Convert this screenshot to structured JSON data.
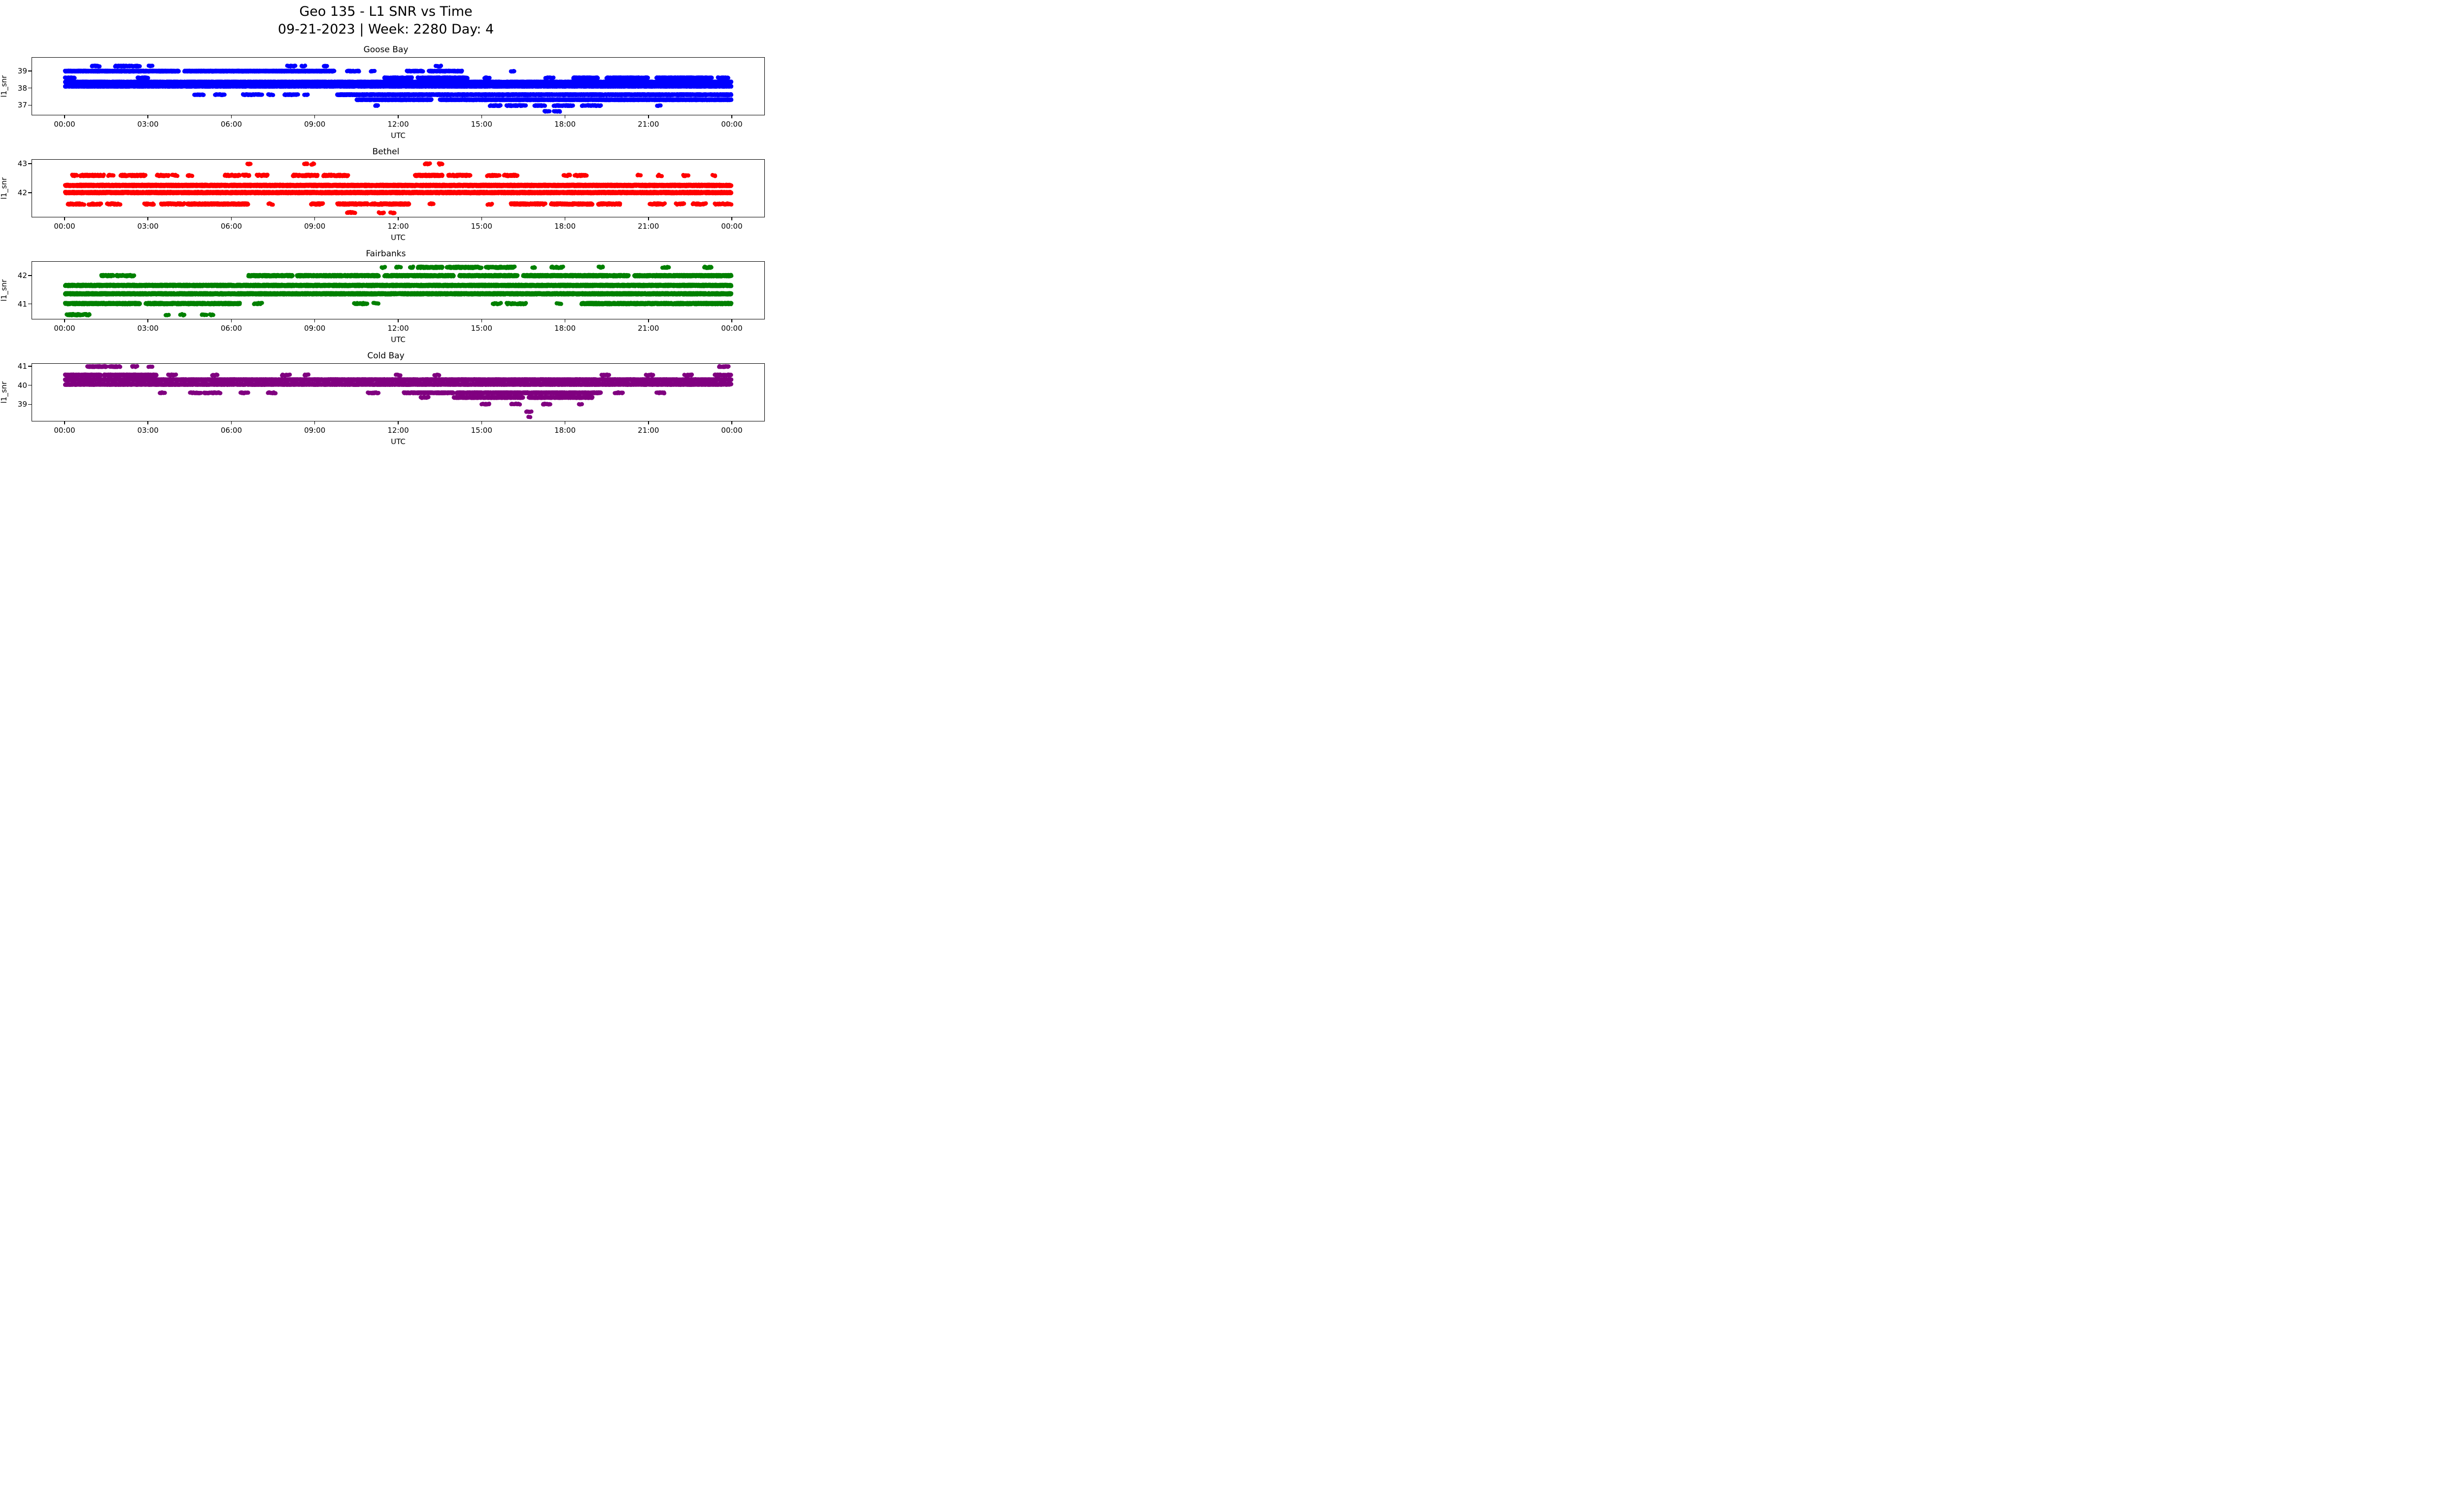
{
  "figure": {
    "title_line1": "Geo 135 - L1 SNR vs Time",
    "title_line2": "09-21-2023 | Week: 2280 Day: 4"
  },
  "chart_data": [
    {
      "type": "scatter",
      "title": "Goose Bay",
      "color": "#0000ff",
      "xlabel": "UTC",
      "ylabel": "l1_snr",
      "xlim": [
        0,
        24
      ],
      "ylim": [
        36.4,
        39.8
      ],
      "x_ticks": [
        0,
        3,
        6,
        9,
        12,
        15,
        18,
        21,
        24
      ],
      "x_ticklabels": [
        "00:00",
        "03:00",
        "06:00",
        "09:00",
        "12:00",
        "15:00",
        "18:00",
        "21:00",
        "00:00"
      ],
      "y_ticks": [
        37,
        38,
        39
      ],
      "marker_px": 8.4,
      "bands": [
        {
          "y": 39.3,
          "segments": [
            [
              0.95,
              1.25,
              50
            ],
            [
              1.8,
              2.25,
              60
            ],
            [
              2.3,
              2.7,
              60
            ],
            [
              3.0,
              3.15,
              40
            ],
            [
              8.0,
              8.3,
              50
            ],
            [
              8.5,
              8.65,
              40
            ],
            [
              9.3,
              9.45,
              40
            ],
            [
              13.35,
              13.55,
              40
            ]
          ]
        },
        {
          "y": 39.0,
          "segments": [
            [
              0.0,
              4.1,
              200
            ],
            [
              4.3,
              9.7,
              200
            ],
            [
              10.15,
              10.6,
              60
            ],
            [
              11.0,
              11.15,
              40
            ],
            [
              12.3,
              12.9,
              80
            ],
            [
              13.1,
              14.3,
              90
            ],
            [
              16.05,
              16.2,
              40
            ]
          ]
        },
        {
          "y": 38.6,
          "segments": [
            [
              0.0,
              0.35,
              80
            ],
            [
              2.6,
              3.0,
              60
            ],
            [
              11.5,
              12.5,
              100
            ],
            [
              12.7,
              14.5,
              110
            ],
            [
              15.1,
              15.3,
              40
            ],
            [
              17.3,
              17.6,
              40
            ],
            [
              18.3,
              19.2,
              90
            ],
            [
              19.5,
              21.0,
              100
            ],
            [
              21.3,
              23.3,
              110
            ],
            [
              23.5,
              23.9,
              60
            ]
          ]
        },
        {
          "y": 38.35,
          "segments": [
            [
              0.0,
              24.0,
              200
            ]
          ]
        },
        {
          "y": 38.1,
          "segments": [
            [
              0.0,
              24.0,
              200
            ]
          ]
        },
        {
          "y": 37.6,
          "segments": [
            [
              4.65,
              5.0,
              60
            ],
            [
              5.4,
              5.75,
              60
            ],
            [
              6.4,
              7.1,
              70
            ],
            [
              7.3,
              7.5,
              40
            ],
            [
              7.9,
              8.4,
              60
            ],
            [
              8.6,
              8.75,
              40
            ],
            [
              9.8,
              24.0,
              190
            ]
          ]
        },
        {
          "y": 37.3,
          "segments": [
            [
              10.5,
              13.2,
              170
            ],
            [
              13.5,
              24.0,
              190
            ]
          ]
        },
        {
          "y": 36.95,
          "segments": [
            [
              11.15,
              11.3,
              30
            ],
            [
              15.3,
              15.7,
              50
            ],
            [
              15.9,
              16.6,
              60
            ],
            [
              16.9,
              17.3,
              50
            ],
            [
              17.6,
              18.3,
              60
            ],
            [
              18.6,
              19.3,
              50
            ],
            [
              21.3,
              21.45,
              30
            ]
          ]
        },
        {
          "y": 36.6,
          "segments": [
            [
              17.25,
              17.45,
              40
            ],
            [
              17.6,
              17.85,
              40
            ]
          ]
        }
      ]
    },
    {
      "type": "scatter",
      "title": "Bethel",
      "color": "#ff0000",
      "xlabel": "UTC",
      "ylabel": "l1_snr",
      "xlim": [
        0,
        24
      ],
      "ylim": [
        41.15,
        43.15
      ],
      "x_ticks": [
        0,
        3,
        6,
        9,
        12,
        15,
        18,
        21,
        24
      ],
      "x_ticklabels": [
        "00:00",
        "03:00",
        "06:00",
        "09:00",
        "12:00",
        "15:00",
        "18:00",
        "21:00",
        "00:00"
      ],
      "y_ticks": [
        42,
        43
      ],
      "marker_px": 8.4,
      "bands": [
        {
          "y": 43.0,
          "segments": [
            [
              6.55,
              6.7,
              40
            ],
            [
              8.6,
              8.75,
              40
            ],
            [
              8.85,
              9.0,
              30
            ],
            [
              12.95,
              13.15,
              40
            ],
            [
              13.45,
              13.6,
              40
            ]
          ]
        },
        {
          "y": 42.6,
          "segments": [
            [
              0.25,
              0.45,
              50
            ],
            [
              0.55,
              1.4,
              80
            ],
            [
              1.55,
              1.75,
              40
            ],
            [
              2.0,
              2.9,
              80
            ],
            [
              3.3,
              3.75,
              60
            ],
            [
              3.85,
              4.05,
              40
            ],
            [
              4.4,
              4.6,
              40
            ],
            [
              5.75,
              6.3,
              70
            ],
            [
              6.4,
              6.65,
              50
            ],
            [
              6.9,
              7.3,
              60
            ],
            [
              8.2,
              9.1,
              90
            ],
            [
              9.3,
              10.2,
              90
            ],
            [
              12.6,
              13.6,
              110
            ],
            [
              13.8,
              14.6,
              90
            ],
            [
              15.2,
              15.65,
              60
            ],
            [
              15.8,
              16.3,
              60
            ],
            [
              17.95,
              18.2,
              40
            ],
            [
              18.35,
              18.8,
              50
            ],
            [
              20.6,
              20.75,
              30
            ],
            [
              21.35,
              21.5,
              30
            ],
            [
              22.25,
              22.45,
              40
            ],
            [
              23.3,
              23.45,
              30
            ]
          ]
        },
        {
          "y": 42.25,
          "segments": [
            [
              0.0,
              24.0,
              210
            ]
          ]
        },
        {
          "y": 42.0,
          "segments": [
            [
              0.0,
              24.0,
              210
            ]
          ]
        },
        {
          "y": 41.6,
          "segments": [
            [
              0.1,
              0.7,
              70
            ],
            [
              0.85,
              1.3,
              60
            ],
            [
              1.5,
              2.0,
              60
            ],
            [
              2.85,
              3.2,
              50
            ],
            [
              3.45,
              4.3,
              80
            ],
            [
              4.4,
              6.6,
              140
            ],
            [
              7.3,
              7.5,
              30
            ],
            [
              8.85,
              9.3,
              50
            ],
            [
              9.8,
              10.9,
              90
            ],
            [
              11.0,
              12.4,
              110
            ],
            [
              13.1,
              13.3,
              30
            ],
            [
              15.2,
              15.4,
              30
            ],
            [
              16.05,
              17.3,
              100
            ],
            [
              17.5,
              19.0,
              110
            ],
            [
              19.2,
              20.0,
              80
            ],
            [
              21.05,
              21.6,
              50
            ],
            [
              22.0,
              22.3,
              40
            ],
            [
              22.6,
              23.1,
              50
            ],
            [
              23.4,
              24.0,
              50
            ]
          ]
        },
        {
          "y": 41.3,
          "segments": [
            [
              10.15,
              10.45,
              40
            ],
            [
              11.3,
              11.5,
              30
            ],
            [
              11.7,
              11.9,
              30
            ]
          ]
        }
      ]
    },
    {
      "type": "scatter",
      "title": "Fairbanks",
      "color": "#008000",
      "xlabel": "UTC",
      "ylabel": "l1_snr",
      "xlim": [
        0,
        24
      ],
      "ylim": [
        40.45,
        42.5
      ],
      "x_ticks": [
        0,
        3,
        6,
        9,
        12,
        15,
        18,
        21,
        24
      ],
      "x_ticklabels": [
        "00:00",
        "03:00",
        "06:00",
        "09:00",
        "12:00",
        "15:00",
        "18:00",
        "21:00",
        "00:00"
      ],
      "y_ticks": [
        41,
        42
      ],
      "marker_px": 8.4,
      "bands": [
        {
          "y": 42.3,
          "segments": [
            [
              11.4,
              11.55,
              30
            ],
            [
              11.9,
              12.1,
              30
            ],
            [
              12.4,
              12.55,
              30
            ],
            [
              12.7,
              13.6,
              80
            ],
            [
              13.75,
              15.0,
              90
            ],
            [
              15.15,
              16.2,
              80
            ],
            [
              16.8,
              16.95,
              30
            ],
            [
              17.5,
              17.95,
              40
            ],
            [
              19.2,
              19.4,
              30
            ],
            [
              21.5,
              21.75,
              30
            ],
            [
              23.0,
              23.3,
              40
            ]
          ]
        },
        {
          "y": 42.0,
          "segments": [
            [
              1.3,
              1.75,
              70
            ],
            [
              1.85,
              2.5,
              70
            ],
            [
              6.6,
              8.2,
              140
            ],
            [
              8.35,
              11.3,
              160
            ],
            [
              11.5,
              14.0,
              160
            ],
            [
              14.2,
              16.3,
              150
            ],
            [
              16.5,
              20.3,
              170
            ],
            [
              20.5,
              24.0,
              170
            ]
          ]
        },
        {
          "y": 41.65,
          "segments": [
            [
              0.0,
              24.0,
              200
            ]
          ]
        },
        {
          "y": 41.35,
          "segments": [
            [
              0.0,
              24.0,
              200
            ]
          ]
        },
        {
          "y": 41.0,
          "segments": [
            [
              0.0,
              2.7,
              180
            ],
            [
              2.9,
              6.3,
              170
            ],
            [
              6.8,
              7.1,
              40
            ],
            [
              10.4,
              10.9,
              50
            ],
            [
              11.1,
              11.3,
              30
            ],
            [
              15.4,
              15.7,
              40
            ],
            [
              15.9,
              16.6,
              50
            ],
            [
              17.7,
              17.9,
              30
            ],
            [
              18.6,
              24.0,
              170
            ]
          ]
        },
        {
          "y": 40.6,
          "segments": [
            [
              0.05,
              0.55,
              70
            ],
            [
              0.6,
              0.9,
              50
            ],
            [
              3.6,
              3.75,
              30
            ],
            [
              4.15,
              4.3,
              30
            ],
            [
              4.9,
              5.1,
              30
            ],
            [
              5.2,
              5.35,
              30
            ]
          ]
        }
      ]
    },
    {
      "type": "scatter",
      "title": "Cold Bay",
      "color": "#800080",
      "xlabel": "UTC",
      "ylabel": "l1_snr",
      "xlim": [
        0,
        24
      ],
      "ylim": [
        38.1,
        41.15
      ],
      "x_ticks": [
        0,
        3,
        6,
        9,
        12,
        15,
        18,
        21,
        24
      ],
      "x_ticklabels": [
        "00:00",
        "03:00",
        "06:00",
        "09:00",
        "12:00",
        "15:00",
        "18:00",
        "21:00",
        "00:00"
      ],
      "y_ticks": [
        39,
        40,
        41
      ],
      "marker_px": 8.4,
      "bands": [
        {
          "y": 41.0,
          "segments": [
            [
              0.8,
              1.5,
              100
            ],
            [
              1.6,
              2.0,
              70
            ],
            [
              2.4,
              2.6,
              40
            ],
            [
              3.0,
              3.15,
              30
            ],
            [
              23.55,
              23.9,
              60
            ]
          ]
        },
        {
          "y": 40.55,
          "segments": [
            [
              0.0,
              1.3,
              160
            ],
            [
              1.4,
              3.3,
              160
            ],
            [
              3.7,
              4.0,
              50
            ],
            [
              5.3,
              5.5,
              40
            ],
            [
              7.8,
              8.1,
              40
            ],
            [
              8.6,
              8.8,
              30
            ],
            [
              11.9,
              12.1,
              30
            ],
            [
              13.3,
              13.5,
              30
            ],
            [
              19.3,
              19.6,
              40
            ],
            [
              20.9,
              21.2,
              40
            ],
            [
              22.3,
              22.6,
              40
            ],
            [
              23.4,
              24.0,
              70
            ]
          ]
        },
        {
          "y": 40.3,
          "segments": [
            [
              0.0,
              24.0,
              210
            ]
          ]
        },
        {
          "y": 40.05,
          "segments": [
            [
              0.0,
              24.0,
              190
            ]
          ]
        },
        {
          "y": 39.6,
          "segments": [
            [
              3.4,
              3.6,
              40
            ],
            [
              4.5,
              4.9,
              50
            ],
            [
              5.0,
              5.6,
              60
            ],
            [
              6.3,
              6.6,
              40
            ],
            [
              7.3,
              7.6,
              40
            ],
            [
              10.9,
              11.3,
              50
            ],
            [
              12.2,
              14.0,
              150
            ],
            [
              14.1,
              19.3,
              180
            ],
            [
              19.8,
              20.1,
              40
            ],
            [
              21.3,
              21.6,
              40
            ]
          ]
        },
        {
          "y": 39.35,
          "segments": [
            [
              12.8,
              13.1,
              40
            ],
            [
              14.0,
              16.5,
              130
            ],
            [
              16.7,
              19.0,
              130
            ]
          ]
        },
        {
          "y": 39.0,
          "segments": [
            [
              15.0,
              15.3,
              40
            ],
            [
              16.05,
              16.4,
              40
            ],
            [
              17.2,
              17.5,
              40
            ],
            [
              18.5,
              18.65,
              30
            ]
          ]
        },
        {
          "y": 38.6,
          "segments": [
            [
              16.6,
              16.8,
              30
            ]
          ]
        },
        {
          "y": 38.3,
          "segments": [
            [
              16.68,
              16.78,
              20
            ]
          ]
        }
      ]
    }
  ]
}
